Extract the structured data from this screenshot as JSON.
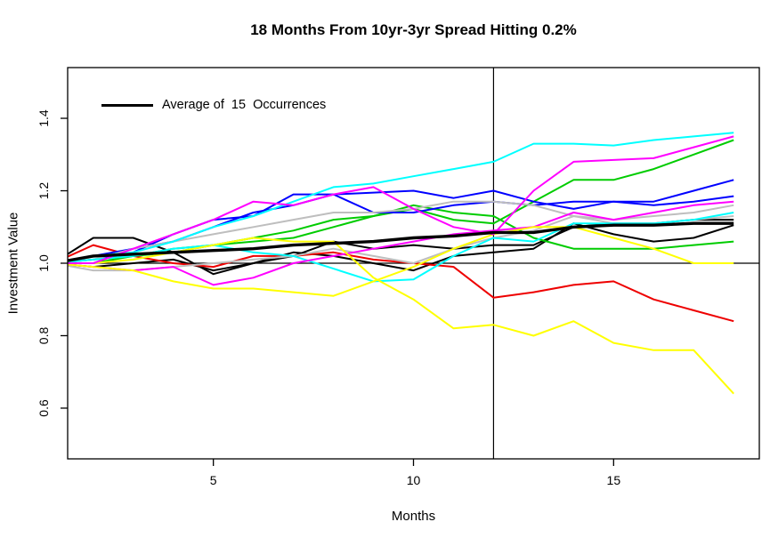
{
  "figure": {
    "background": "#FFFFFF"
  },
  "chart_data": {
    "type": "line",
    "title": "18 Months From 10yr-3yr Spread Hitting 0.2%",
    "xlabel": "Months",
    "ylabel": "Investment Value",
    "x_ticks": [
      5,
      10,
      15
    ],
    "y_ticks": [
      "0.6",
      "0.8",
      "1.0",
      "1.2",
      "1.4"
    ],
    "x_window": [
      1.36,
      18.64
    ],
    "y_window": [
      0.46,
      1.54
    ],
    "grid": false,
    "reference_lines": {
      "horizontal_y": 1.0,
      "vertical_x": 12
    },
    "legend": {
      "label": "Average of  15  Occurrences",
      "line_color": "#000000",
      "position": "top-left"
    },
    "x": [
      1,
      2,
      3,
      4,
      5,
      6,
      7,
      8,
      9,
      10,
      11,
      12,
      13,
      14,
      15,
      16,
      17,
      18
    ],
    "series": [
      {
        "name": "occurrence-black-1",
        "color": "#000000",
        "width": 2,
        "values": [
          1.0,
          1.07,
          1.07,
          1.03,
          0.97,
          1.0,
          1.02,
          1.06,
          1.04,
          1.05,
          1.04,
          1.05,
          1.05,
          1.1,
          1.11,
          1.11,
          1.12,
          1.12
        ]
      },
      {
        "name": "occurrence-black-2",
        "color": "#000000",
        "width": 2,
        "values": [
          1.0,
          0.99,
          1.0,
          1.01,
          0.98,
          1.0,
          1.03,
          1.02,
          1.0,
          0.98,
          1.02,
          1.03,
          1.04,
          1.11,
          1.08,
          1.06,
          1.07,
          1.105
        ]
      },
      {
        "name": "occurrence-red-1",
        "color": "#EE0000",
        "width": 2,
        "values": [
          1.0,
          1.05,
          1.02,
          1.0,
          0.99,
          1.02,
          1.02,
          1.03,
          1.01,
          1.0,
          0.99,
          0.905,
          0.92,
          0.94,
          0.95,
          0.9,
          0.87,
          0.84
        ]
      },
      {
        "name": "occurrence-green-1",
        "color": "#00CC00",
        "width": 2,
        "values": [
          1.0,
          1.01,
          1.02,
          1.04,
          1.05,
          1.06,
          1.07,
          1.1,
          1.13,
          1.15,
          1.12,
          1.11,
          1.17,
          1.23,
          1.23,
          1.26,
          1.3,
          1.34
        ]
      },
      {
        "name": "occurrence-green-2",
        "color": "#00CC00",
        "width": 2,
        "values": [
          1.0,
          1.0,
          1.02,
          1.03,
          1.05,
          1.07,
          1.09,
          1.12,
          1.13,
          1.16,
          1.14,
          1.13,
          1.07,
          1.04,
          1.04,
          1.04,
          1.05,
          1.06
        ]
      },
      {
        "name": "occurrence-blue-1",
        "color": "#0000FF",
        "width": 2,
        "values": [
          1.0,
          1.02,
          1.04,
          1.06,
          1.1,
          1.14,
          1.16,
          1.19,
          1.195,
          1.2,
          1.18,
          1.2,
          1.17,
          1.15,
          1.17,
          1.17,
          1.2,
          1.23
        ]
      },
      {
        "name": "occurrence-blue-2",
        "color": "#0000FF",
        "width": 2,
        "values": [
          1.0,
          1.01,
          1.03,
          1.08,
          1.12,
          1.13,
          1.19,
          1.19,
          1.14,
          1.14,
          1.16,
          1.17,
          1.16,
          1.17,
          1.17,
          1.16,
          1.17,
          1.185
        ]
      },
      {
        "name": "occurrence-gray-1",
        "color": "#BEBEBE",
        "width": 2,
        "values": [
          1.0,
          1.01,
          1.04,
          1.06,
          1.08,
          1.1,
          1.12,
          1.14,
          1.14,
          1.15,
          1.17,
          1.17,
          1.16,
          1.13,
          1.12,
          1.13,
          1.14,
          1.16
        ]
      },
      {
        "name": "occurrence-gray-2",
        "color": "#BEBEBE",
        "width": 2,
        "values": [
          1.0,
          0.98,
          0.98,
          0.99,
          1.0,
          1.01,
          1.02,
          1.04,
          1.02,
          1.0,
          1.04,
          1.07,
          1.09,
          1.13,
          1.11,
          1.11,
          1.12,
          1.13
        ]
      },
      {
        "name": "occurrence-cyan-2",
        "color": "#00FFFF",
        "width": 2,
        "values": [
          1.0,
          1.01,
          1.02,
          1.04,
          1.05,
          1.03,
          1.02,
          0.985,
          0.95,
          0.955,
          1.02,
          1.07,
          1.06,
          1.11,
          1.11,
          1.11,
          1.12,
          1.14
        ]
      },
      {
        "name": "occurrence-magenta-2",
        "color": "#FF00FF",
        "width": 2,
        "values": [
          1.0,
          0.99,
          0.98,
          0.99,
          0.94,
          0.96,
          1.0,
          1.02,
          1.04,
          1.06,
          1.08,
          1.09,
          1.1,
          1.14,
          1.12,
          1.14,
          1.16,
          1.17
        ]
      },
      {
        "name": "occurrence-yellow-1",
        "color": "#FFFF00",
        "width": 2,
        "values": [
          1.0,
          0.99,
          0.98,
          0.95,
          0.93,
          0.93,
          0.92,
          0.91,
          0.95,
          0.99,
          1.04,
          1.08,
          1.1,
          1.1,
          1.07,
          1.04,
          1.0,
          1.0
        ]
      },
      {
        "name": "occurrence-yellow-2",
        "color": "#FFFF00",
        "width": 2,
        "values": [
          1.0,
          1.0,
          1.01,
          1.03,
          1.05,
          1.07,
          1.06,
          1.06,
          0.96,
          0.9,
          0.82,
          0.83,
          0.8,
          0.84,
          0.78,
          0.76,
          0.76,
          0.64
        ]
      },
      {
        "name": "occurrence-cyan-1",
        "color": "#00FFFF",
        "width": 2,
        "values": [
          1.0,
          1.02,
          1.03,
          1.06,
          1.1,
          1.13,
          1.17,
          1.21,
          1.22,
          1.24,
          1.26,
          1.28,
          1.33,
          1.33,
          1.325,
          1.34,
          1.35,
          1.36
        ]
      },
      {
        "name": "occurrence-magenta-1",
        "color": "#FF00FF",
        "width": 2,
        "values": [
          1.0,
          1.0,
          1.04,
          1.08,
          1.12,
          1.17,
          1.16,
          1.19,
          1.21,
          1.15,
          1.1,
          1.08,
          1.2,
          1.28,
          1.285,
          1.29,
          1.32,
          1.35
        ]
      },
      {
        "name": "average-of-15-occurrences",
        "color": "#000000",
        "width": 3.4,
        "values": [
          1.0,
          1.02,
          1.025,
          1.03,
          1.035,
          1.04,
          1.05,
          1.055,
          1.06,
          1.07,
          1.075,
          1.085,
          1.085,
          1.1,
          1.105,
          1.105,
          1.11,
          1.11
        ]
      }
    ]
  }
}
